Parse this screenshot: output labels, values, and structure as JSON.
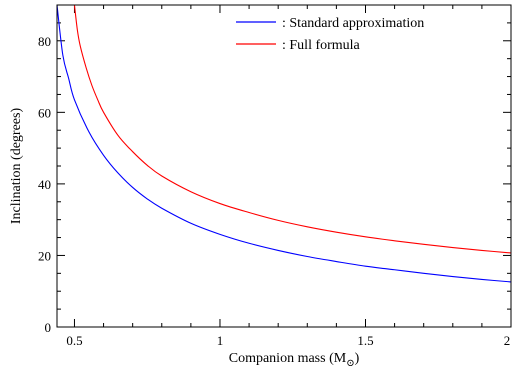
{
  "chart_data": {
    "type": "line",
    "title": "",
    "xlabel": "Companion mass (M",
    "xlabel_subscript": "⊙",
    "xlabel_suffix": ")",
    "ylabel": "Inclination (degrees)",
    "xlim": [
      0.44,
      2.0
    ],
    "ylim": [
      0,
      90
    ],
    "xticks_major": [
      0.5,
      1,
      1.5,
      2
    ],
    "xtick_labels": [
      "0.5",
      "1",
      "1.5",
      "2"
    ],
    "yticks_major": [
      0,
      20,
      40,
      60,
      80
    ],
    "ytick_labels": [
      "0",
      "20",
      "40",
      "60",
      "80"
    ],
    "xticks_minor_step": 0.1,
    "yticks_minor_step": 5,
    "grid": false,
    "legend_position": "top-right",
    "series": [
      {
        "name": ": Standard approximation",
        "color": "#0000ff",
        "x": [
          0.44,
          0.46,
          0.48,
          0.5,
          0.55,
          0.6,
          0.65,
          0.7,
          0.75,
          0.8,
          0.9,
          1.0,
          1.1,
          1.2,
          1.3,
          1.4,
          1.5,
          1.6,
          1.7,
          1.8,
          1.9,
          2.0
        ],
        "y": [
          90,
          76,
          69.5,
          63.5,
          54.5,
          48,
          43,
          39,
          35.8,
          33.2,
          29,
          25.9,
          23.4,
          21.4,
          19.7,
          18.3,
          17.0,
          16.0,
          15.0,
          14.1,
          13.3,
          12.6
        ]
      },
      {
        "name": ": Full formula",
        "color": "#ff0000",
        "x": [
          0.5,
          0.51,
          0.52,
          0.54,
          0.56,
          0.58,
          0.6,
          0.65,
          0.7,
          0.75,
          0.8,
          0.9,
          1.0,
          1.1,
          1.2,
          1.3,
          1.4,
          1.5,
          1.6,
          1.7,
          1.8,
          1.9,
          2.0
        ],
        "y": [
          90,
          83,
          78.5,
          72.5,
          67.5,
          63.5,
          60,
          53.5,
          49,
          45.2,
          42.2,
          37.8,
          34.5,
          32.0,
          29.8,
          28.0,
          26.5,
          25.2,
          24.1,
          23.1,
          22.2,
          21.4,
          20.7
        ]
      }
    ]
  }
}
